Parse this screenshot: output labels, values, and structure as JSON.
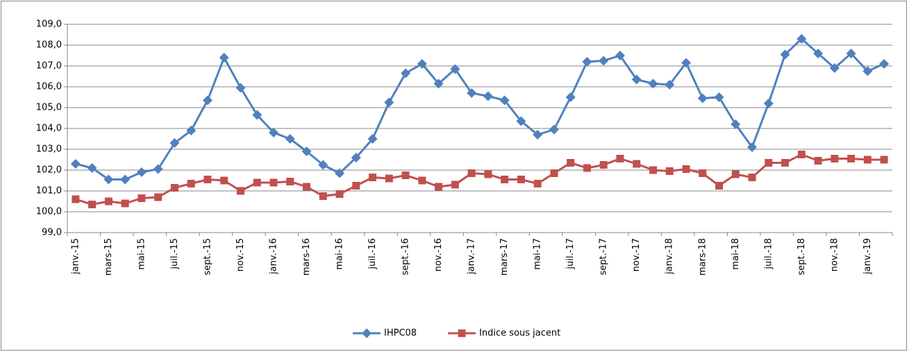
{
  "chart_data": {
    "type": "line",
    "categories": [
      "janv.-15",
      null,
      "mars-15",
      null,
      "mai-15",
      null,
      "juil.-15",
      null,
      "sept.-15",
      null,
      "nov.-15",
      null,
      "janv.-16",
      null,
      "mars-16",
      null,
      "mai-16",
      null,
      "juil.-16",
      null,
      "sept.-16",
      null,
      "nov.-16",
      null,
      "janv.-17",
      null,
      "mars-17",
      null,
      "mai-17",
      null,
      "juil.-17",
      null,
      "sept.-17",
      null,
      "nov.-17",
      null,
      "janv.-18",
      null,
      "mars-18",
      null,
      "mai-18",
      null,
      "juil.-18",
      null,
      "sept.-18",
      null,
      "nov.-18",
      null,
      "janv.-19",
      null
    ],
    "series": [
      {
        "name": "IHPC08",
        "color": "#4f81bd",
        "marker": "diamond",
        "values": [
          102.3,
          102.1,
          101.55,
          101.55,
          101.9,
          102.05,
          103.3,
          103.9,
          105.35,
          107.4,
          105.95,
          104.65,
          103.8,
          103.5,
          102.9,
          102.25,
          101.85,
          102.6,
          103.5,
          105.25,
          106.65,
          107.1,
          106.15,
          106.85,
          105.7,
          105.55,
          105.35,
          104.35,
          103.7,
          103.95,
          105.5,
          107.2,
          107.25,
          107.5,
          106.35,
          106.15,
          106.1,
          107.15,
          105.45,
          105.5,
          104.2,
          103.1,
          105.2,
          107.55,
          108.3,
          107.6,
          106.9,
          107.6,
          106.75,
          107.1
        ]
      },
      {
        "name": "Indice sous jacent",
        "color": "#c0504d",
        "marker": "square",
        "values": [
          100.6,
          100.35,
          100.5,
          100.4,
          100.65,
          100.7,
          101.15,
          101.35,
          101.55,
          101.5,
          101.0,
          101.4,
          101.4,
          101.45,
          101.2,
          100.75,
          100.85,
          101.25,
          101.65,
          101.6,
          101.75,
          101.5,
          101.2,
          101.3,
          101.85,
          101.8,
          101.55,
          101.55,
          101.35,
          101.85,
          102.35,
          102.1,
          102.25,
          102.55,
          102.3,
          102.0,
          101.95,
          102.05,
          101.85,
          101.25,
          101.8,
          101.65,
          102.35,
          102.35,
          102.75,
          102.45,
          102.55,
          102.55,
          102.5,
          102.5
        ]
      }
    ],
    "ylim": [
      99,
      109
    ],
    "yticks": [
      {
        "value": 99,
        "label": "99,0"
      },
      {
        "value": 100,
        "label": "100,0"
      },
      {
        "value": 101,
        "label": "101,0"
      },
      {
        "value": 102,
        "label": "102,0"
      },
      {
        "value": 103,
        "label": "103,0"
      },
      {
        "value": 104,
        "label": "104,0"
      },
      {
        "value": 105,
        "label": "105,0"
      },
      {
        "value": 106,
        "label": "106,0"
      },
      {
        "value": 107,
        "label": "107,0"
      },
      {
        "value": 108,
        "label": "108,0"
      },
      {
        "value": 109,
        "label": "109,0"
      }
    ],
    "grid": true,
    "legend": "bottom"
  }
}
